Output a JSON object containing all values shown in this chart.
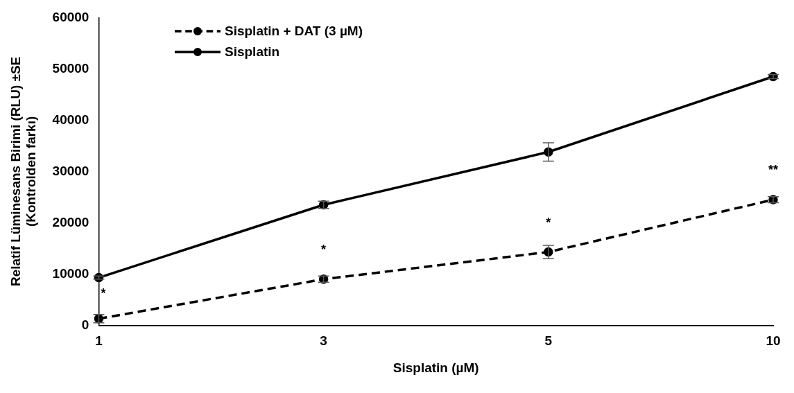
{
  "chart_data": {
    "type": "line",
    "xlabel": "Sisplatin (µM)",
    "ylabel": "Relatif Lüminesans Birimi (RLU) ±SE\n(Kontrolden farkı)",
    "categories": [
      "1",
      "3",
      "5",
      "10"
    ],
    "series": [
      {
        "name": "Sisplatin + DAT (3 µM)",
        "color": "#000000",
        "line_style": "dashed",
        "values": [
          1300,
          9000,
          14300,
          24500
        ],
        "errors": [
          800,
          600,
          1300,
          600
        ]
      },
      {
        "name": "Sisplatin",
        "color": "#000000",
        "line_style": "solid",
        "values": [
          9300,
          23500,
          33800,
          48500
        ],
        "errors": [
          300,
          700,
          1800,
          400
        ]
      }
    ],
    "ylim": [
      0,
      60000
    ],
    "yticks": [
      0,
      10000,
      20000,
      30000,
      40000,
      50000,
      60000
    ],
    "grid": false,
    "legend": "top left",
    "marker": "circle",
    "annotations": [
      {
        "text": "*",
        "x": "1",
        "y": 1300
      },
      {
        "text": "*",
        "x": "3",
        "y": 9000
      },
      {
        "text": "*",
        "x": "5",
        "y": 14300
      },
      {
        "text": "**",
        "x": "10",
        "y": 24500
      }
    ]
  }
}
